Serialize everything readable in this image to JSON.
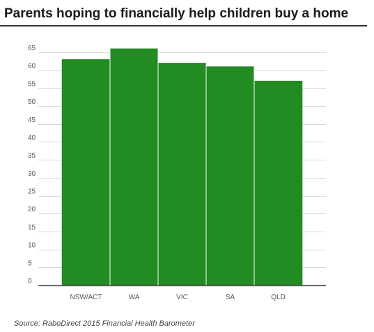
{
  "title": "Parents hoping to financially help children buy a home",
  "source": "Source: RaboDirect 2015 Financial Health Barometer",
  "colors": {
    "bar": "#228B22",
    "grid": "#d9d9d9",
    "axis": "#555555"
  },
  "chart_data": {
    "type": "bar",
    "title": "Parents hoping to financially help children buy a home",
    "xlabel": "",
    "ylabel": "",
    "categories": [
      "NSW/ACT",
      "WA",
      "VIC",
      "SA",
      "QLD"
    ],
    "values": [
      63,
      66,
      62,
      61,
      57
    ],
    "ylim": [
      0,
      65
    ],
    "yticks": [
      0,
      5,
      10,
      15,
      20,
      25,
      30,
      35,
      40,
      45,
      50,
      55,
      60,
      65
    ],
    "grid": true,
    "legend": "none"
  }
}
